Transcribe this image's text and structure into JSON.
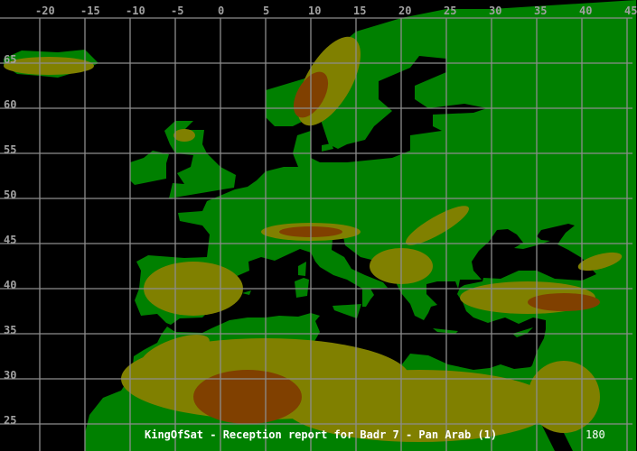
{
  "map": {
    "title": "KingOfSat - Reception report for Badr 7 - Pan Arab (1)",
    "corner_value": "180",
    "longitude_labels": [
      "-20",
      "-15",
      "-10",
      "-5",
      "0",
      "5",
      "10",
      "15",
      "20",
      "25",
      "30",
      "35",
      "40",
      "45"
    ],
    "latitude_labels": [
      "65",
      "60",
      "55",
      "50",
      "45",
      "40",
      "35",
      "30",
      "25"
    ],
    "colors": {
      "sea": "#000000",
      "lowland": "#008000",
      "hills": "#808000",
      "mountains": "#804000",
      "grid": "#8c8c8c",
      "ice": "#60c0e0"
    }
  }
}
